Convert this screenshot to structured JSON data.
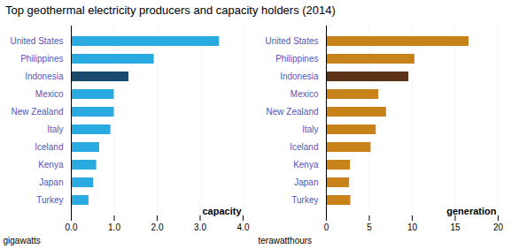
{
  "chart_data": [
    {
      "type": "bar",
      "orientation": "horizontal",
      "title": "Top geothermal electricity producers and capacity holders (2014)",
      "categories": [
        "United States",
        "Philippines",
        "Indonesia",
        "Mexico",
        "New Zealand",
        "Italy",
        "Iceland",
        "Kenya",
        "Japan",
        "Turkey"
      ],
      "values": [
        3.45,
        1.93,
        1.34,
        1.0,
        1.0,
        0.92,
        0.66,
        0.59,
        0.52,
        0.41
      ],
      "colors": [
        "#29ABE2",
        "#29ABE2",
        "#1A4B6E",
        "#29ABE2",
        "#29ABE2",
        "#29ABE2",
        "#29ABE2",
        "#29ABE2",
        "#29ABE2",
        "#29ABE2"
      ],
      "x_label": "gigawatts",
      "annotations": [
        "capacity"
      ],
      "xlim": [
        0,
        4
      ],
      "xticks": [
        0,
        1,
        2,
        3,
        4
      ],
      "grid": true
    },
    {
      "type": "bar",
      "orientation": "horizontal",
      "categories": [
        "United States",
        "Philippines",
        "Indonesia",
        "Mexico",
        "New Zealand",
        "Italy",
        "Iceland",
        "Kenya",
        "Japan",
        "Turkey"
      ],
      "values": [
        16.6,
        10.3,
        9.6,
        6.1,
        7.0,
        5.8,
        5.2,
        2.8,
        2.7,
        2.84
      ],
      "colors": [
        "#C8821A",
        "#C8821A",
        "#5C3317",
        "#C8821A",
        "#C8821A",
        "#C8821A",
        "#C8821A",
        "#C8821A",
        "#C8821A",
        "#C8821A"
      ],
      "x_label": "terawatthours",
      "annotations": [
        "generation"
      ],
      "xlim": [
        0,
        20
      ],
      "xticks": [
        0,
        5,
        10,
        15,
        20
      ],
      "grid": true
    }
  ]
}
